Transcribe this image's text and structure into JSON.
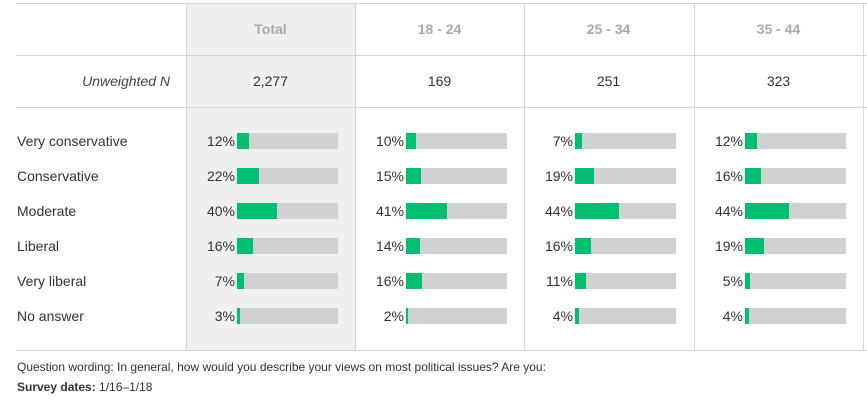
{
  "chart_data": {
    "type": "table",
    "columns": [
      "Total",
      "18 - 24",
      "25 - 34",
      "35 - 44"
    ],
    "unweighted_n_label": "Unweighted N",
    "unweighted_n": [
      "2,277",
      "169",
      "251",
      "323"
    ],
    "rows": [
      {
        "label": "Very conservative",
        "values": [
          12,
          10,
          7,
          12
        ]
      },
      {
        "label": "Conservative",
        "values": [
          22,
          15,
          19,
          16
        ]
      },
      {
        "label": "Moderate",
        "values": [
          40,
          41,
          44,
          44
        ]
      },
      {
        "label": "Liberal",
        "values": [
          16,
          14,
          16,
          19
        ]
      },
      {
        "label": "Very liberal",
        "values": [
          7,
          16,
          11,
          5
        ]
      },
      {
        "label": "No answer",
        "values": [
          3,
          2,
          4,
          4
        ]
      }
    ],
    "value_suffix": "%",
    "bar_color": "#00bf6f",
    "track_color": "#d0d1d2"
  },
  "footer": {
    "question": "Question wording: In general, how would you describe your views on most political issues? Are you:",
    "dates_label": "Survey dates:",
    "dates_value": "1/16–1/18"
  }
}
